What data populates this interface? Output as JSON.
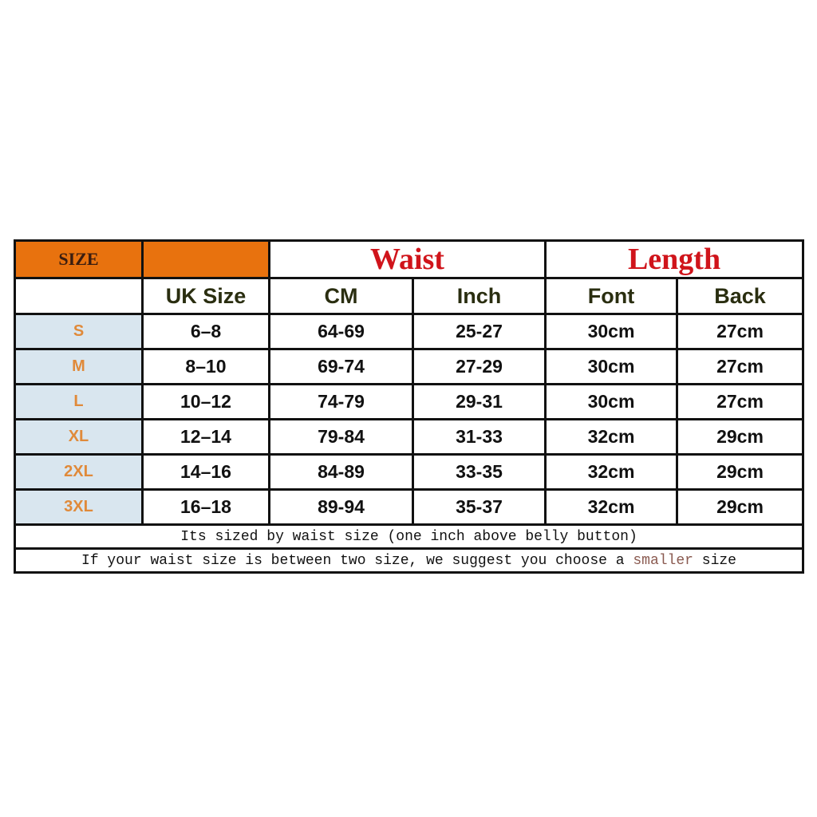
{
  "header": {
    "size_label": "SIZE",
    "waist_label": "Waist",
    "length_label": "Length",
    "columns": [
      "UK Size",
      "CM",
      "Inch",
      "Font",
      "Back"
    ]
  },
  "rows": [
    {
      "size": "S",
      "uk": "6–8",
      "cm": "64-69",
      "inch": "25-27",
      "font": "30cm",
      "back": "27cm"
    },
    {
      "size": "M",
      "uk": "8–10",
      "cm": "69-74",
      "inch": "27-29",
      "font": "30cm",
      "back": "27cm"
    },
    {
      "size": "L",
      "uk": "10–12",
      "cm": "74-79",
      "inch": "29-31",
      "font": "30cm",
      "back": "27cm"
    },
    {
      "size": "XL",
      "uk": "12–14",
      "cm": "79-84",
      "inch": "31-33",
      "font": "32cm",
      "back": "29cm"
    },
    {
      "size": "2XL",
      "uk": "14–16",
      "cm": "84-89",
      "inch": "33-35",
      "font": "32cm",
      "back": "29cm"
    },
    {
      "size": "3XL",
      "uk": "16–18",
      "cm": "89-94",
      "inch": "35-37",
      "font": "32cm",
      "back": "29cm"
    }
  ],
  "notes": {
    "note1": "Its sized by waist size (one inch above belly button)",
    "note2_before": "If your waist size is between two size, we suggest you choose a ",
    "note2_highlight": "smaller",
    "note2_after": " size"
  },
  "colors": {
    "header_orange": "#e8720e",
    "title_red": "#d0141b",
    "size_label_bg": "#d9e6ef",
    "size_label_text": "#e08a3a"
  }
}
